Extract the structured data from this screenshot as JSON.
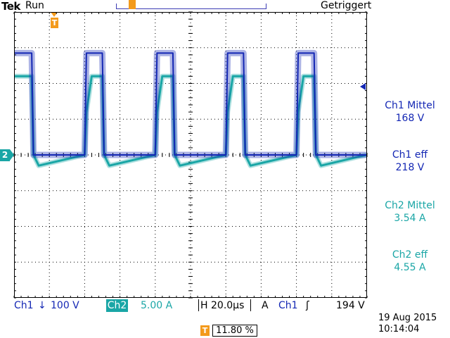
{
  "header": {
    "brand": "Tek",
    "acq_state": "Run",
    "trigger_state": "Getriggert"
  },
  "markers": {
    "trigger_position": "T",
    "ch2_ground": "2"
  },
  "measurements": [
    {
      "label": "Ch1 Mittel",
      "value": "168 V"
    },
    {
      "label": "Ch1 eff",
      "value": "218 V"
    },
    {
      "label": "Ch2 Mittel",
      "value": "3.54 A"
    },
    {
      "label": "Ch2 eff",
      "value": "4.55 A"
    }
  ],
  "bottom": {
    "ch1_label": "Ch1",
    "ch1_coupling": "↓",
    "ch1_scale": "100 V",
    "ch2_label": "Ch2",
    "ch2_scale": "5.00 A",
    "h_label": "H",
    "time_scale": "20.0µs",
    "a_label": "A",
    "trig_source": "Ch1",
    "trig_slope": "ʃ",
    "trig_level": "194 V",
    "trig_pos_icon": "T",
    "trig_pos": "11.80 %",
    "date": "19 Aug 2015",
    "time": "10:14:04"
  },
  "colors": {
    "ch1": "#1427b4",
    "ch2": "#1aa6a6",
    "trigger": "#f39a1c",
    "grid": "#000000"
  },
  "chart_data": {
    "type": "line",
    "title": "",
    "xlabel": "",
    "ylabel": "",
    "x_units": "µs",
    "x": [
      0,
      10,
      11,
      14,
      40,
      41,
      44,
      50,
      51,
      54,
      80,
      81,
      84,
      90,
      91,
      94,
      120,
      121,
      124,
      130,
      131,
      134,
      160,
      161,
      164,
      170,
      171,
      174,
      200
    ],
    "series": [
      {
        "name": "Ch1",
        "unit": "V",
        "values": [
          285,
          285,
          0,
          0,
          0,
          285,
          285,
          285,
          0,
          0,
          0,
          285,
          285,
          285,
          0,
          0,
          0,
          285,
          285,
          285,
          0,
          0,
          0,
          285,
          285,
          285,
          0,
          0,
          0
        ]
      },
      {
        "name": "Ch2",
        "unit": "A",
        "values": [
          11,
          11,
          0,
          -1.5,
          0,
          6,
          11,
          11,
          0,
          -1.5,
          0,
          6,
          11,
          11,
          0,
          -1.5,
          0,
          6,
          11,
          11,
          0,
          -1.5,
          0,
          6,
          11,
          11,
          0,
          -1.5,
          0
        ]
      }
    ],
    "grid": true
  }
}
